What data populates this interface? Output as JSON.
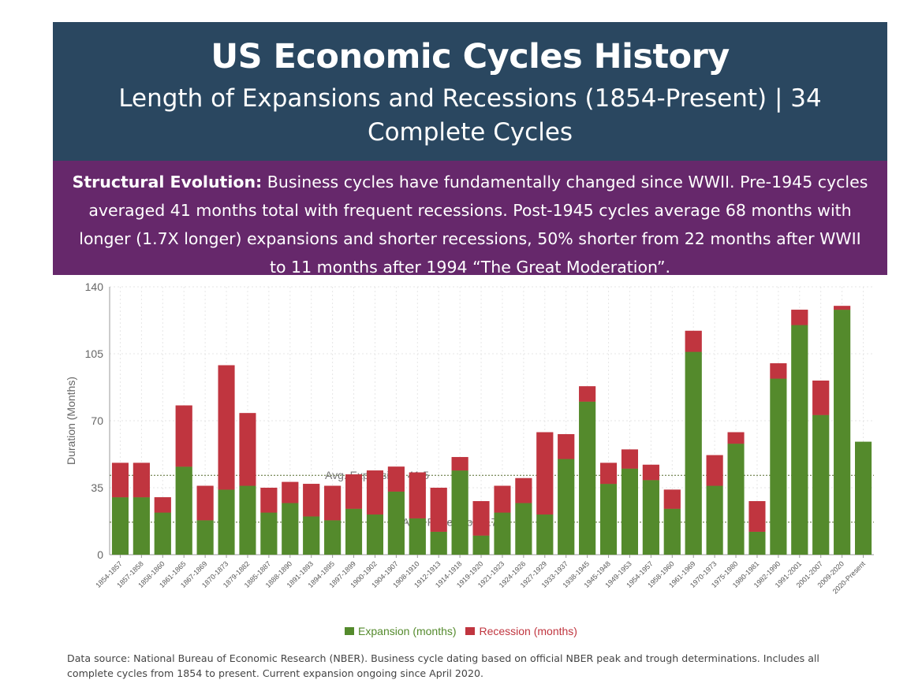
{
  "header": {
    "title": "US Economic Cycles History",
    "subtitle": "Length of Expansions and Recessions (1854-Present) | 34 Complete Cycles"
  },
  "banner": {
    "lead": "Structural Evolution:",
    "text": " Business cycles have fundamentally changed since WWII. Pre-1945 cycles averaged 41 months total with frequent recessions. Post-1945 cycles average 68 months with longer (1.7X longer) expansions and shorter recessions, 50% shorter from 22 months after WWII to 11 months after 1994 “The Great Moderation”."
  },
  "footer": {
    "text": "Data source: National Bureau of Economic Research (NBER). Business cycle dating based on official NBER peak and trough determinations. Includes all complete cycles from 1854 to present. Current expansion ongoing since April 2020."
  },
  "colors": {
    "expansion": "#548a2c",
    "recession": "#c0353f",
    "header_bg": "#2a4760",
    "banner_bg": "#66286b"
  },
  "chart_data": {
    "type": "bar",
    "stacked": true,
    "ylabel": "Duration (Months)",
    "ylim": [
      0,
      140
    ],
    "yticks": [
      0,
      35,
      70,
      105,
      140
    ],
    "grid": true,
    "legend_position": "bottom",
    "categories": [
      "1854-1857",
      "1857-1858",
      "1858-1860",
      "1861-1865",
      "1867-1869",
      "1870-1873",
      "1879-1882",
      "1885-1887",
      "1888-1890",
      "1891-1893",
      "1894-1895",
      "1897-1899",
      "1900-1902",
      "1904-1907",
      "1908-1910",
      "1912-1913",
      "1914-1918",
      "1919-1920",
      "1921-1923",
      "1924-1926",
      "1927-1929",
      "1933-1937",
      "1938-1945",
      "1945-1948",
      "1949-1953",
      "1954-1957",
      "1958-1960",
      "1961-1969",
      "1970-1973",
      "1975-1980",
      "1980-1981",
      "1982-1990",
      "1991-2001",
      "2001-2007",
      "2009-2020",
      "2020-Present"
    ],
    "series": [
      {
        "name": "Expansion (months)",
        "values": [
          30,
          30,
          22,
          46,
          18,
          34,
          36,
          22,
          27,
          20,
          18,
          24,
          21,
          33,
          19,
          12,
          44,
          10,
          22,
          27,
          21,
          50,
          80,
          37,
          45,
          39,
          24,
          106,
          36,
          58,
          12,
          92,
          120,
          73,
          128,
          59
        ]
      },
      {
        "name": "Recession (months)",
        "values": [
          18,
          18,
          8,
          32,
          18,
          65,
          38,
          13,
          11,
          17,
          18,
          18,
          23,
          13,
          24,
          23,
          7,
          18,
          14,
          13,
          43,
          13,
          8,
          11,
          10,
          8,
          10,
          11,
          16,
          6,
          16,
          8,
          8,
          18,
          2,
          0
        ]
      }
    ],
    "reference_lines": [
      {
        "label": "Avg. Expansion: 41.5",
        "value": 41.5
      },
      {
        "label": "Avg. Recession: 17",
        "value": 17
      }
    ]
  }
}
